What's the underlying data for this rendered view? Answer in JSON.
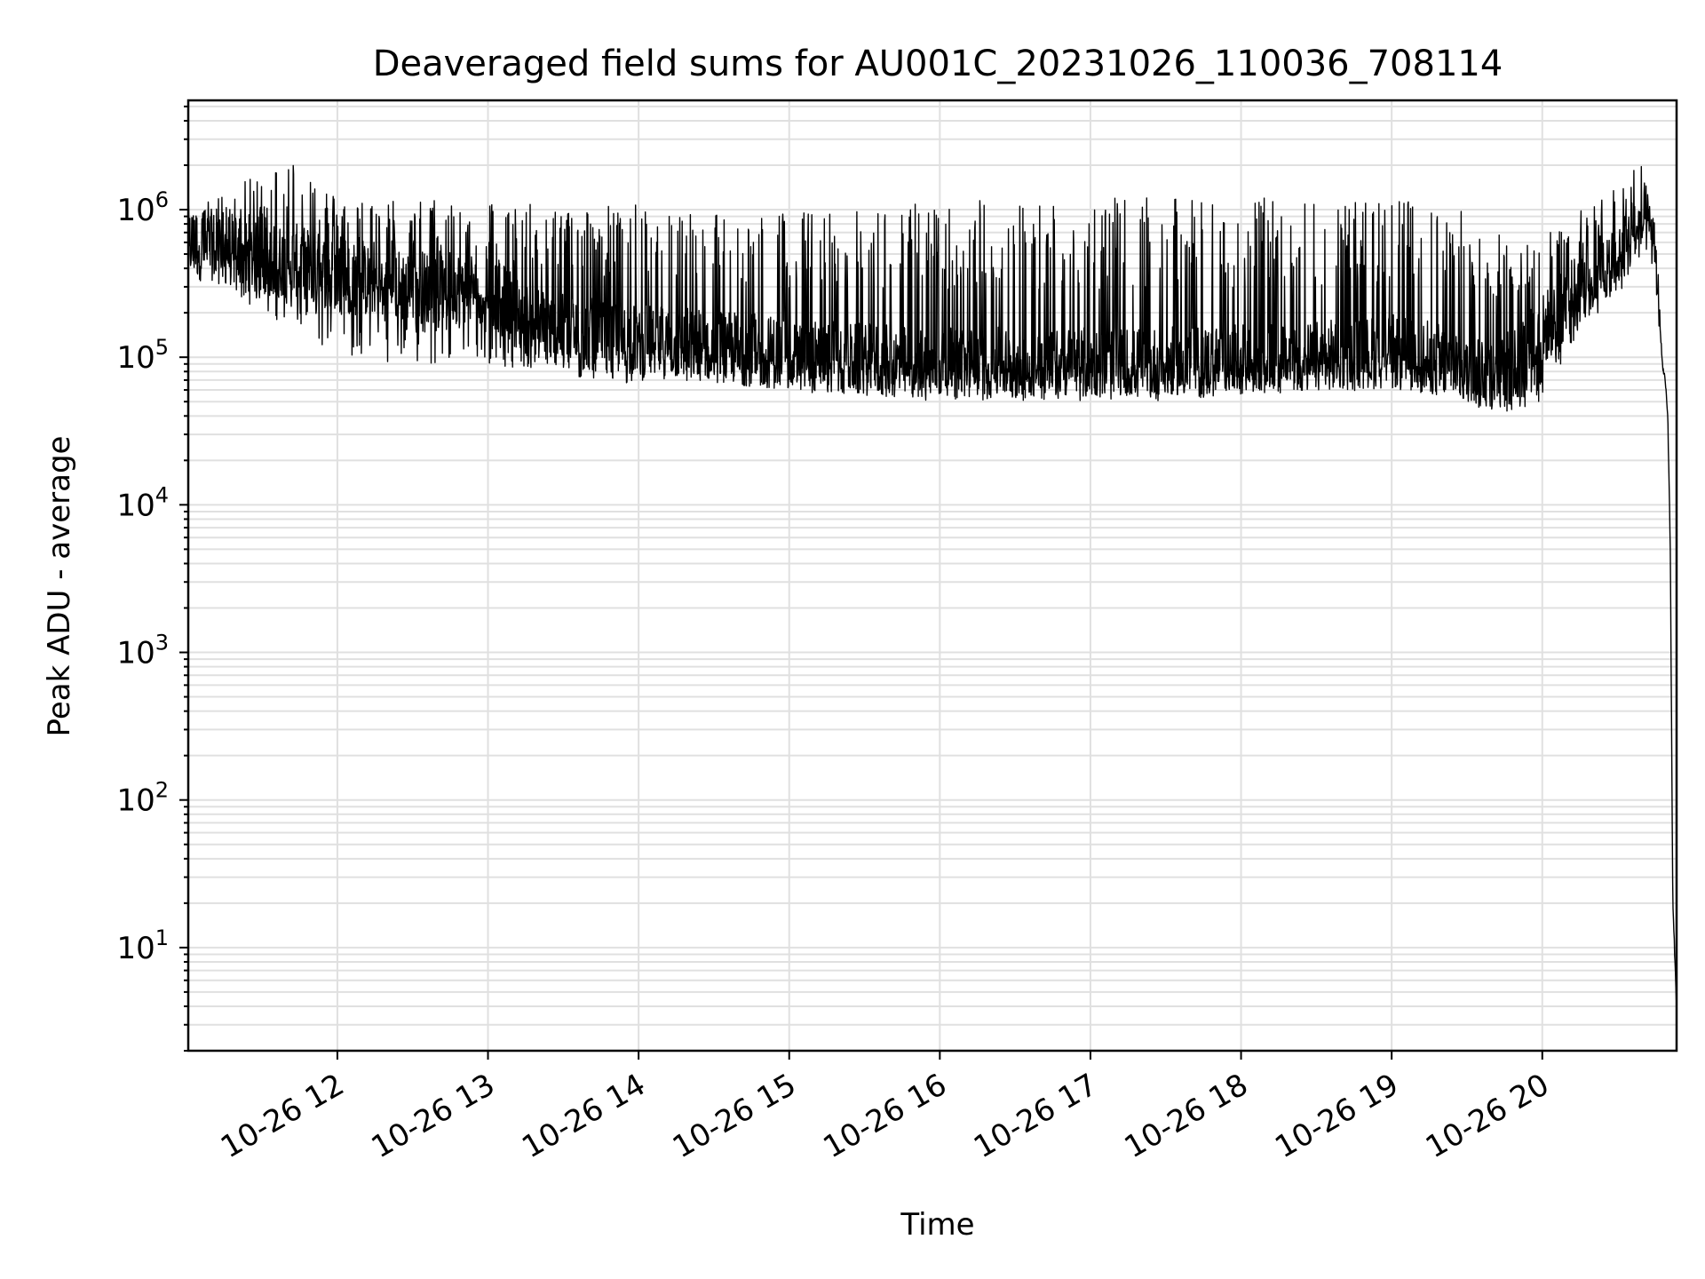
{
  "chart_data": {
    "type": "line",
    "title": "Deaveraged field sums for AU001C_20231026_110036_708114",
    "xlabel": "Time",
    "ylabel": "Peak ADU - average",
    "yscale": "log",
    "ylim": [
      2,
      5500000
    ],
    "xlim": [
      "2023-10-26T11:00:36",
      "2023-10-26T20:53:30"
    ],
    "grid": "on (major and minor)",
    "legend": "none",
    "line_color": "#000000",
    "x_ticks": [
      {
        "t": "2023-10-26T12:00:00",
        "label": "10-26 12"
      },
      {
        "t": "2023-10-26T13:00:00",
        "label": "10-26 13"
      },
      {
        "t": "2023-10-26T14:00:00",
        "label": "10-26 14"
      },
      {
        "t": "2023-10-26T15:00:00",
        "label": "10-26 15"
      },
      {
        "t": "2023-10-26T16:00:00",
        "label": "10-26 16"
      },
      {
        "t": "2023-10-26T17:00:00",
        "label": "10-26 17"
      },
      {
        "t": "2023-10-26T18:00:00",
        "label": "10-26 18"
      },
      {
        "t": "2023-10-26T19:00:00",
        "label": "10-26 19"
      },
      {
        "t": "2023-10-26T20:00:00",
        "label": "10-26 20"
      }
    ],
    "y_ticks": [
      {
        "value": 10,
        "base": "10",
        "exp": "1"
      },
      {
        "value": 100,
        "base": "10",
        "exp": "2"
      },
      {
        "value": 1000,
        "base": "10",
        "exp": "3"
      },
      {
        "value": 10000,
        "base": "10",
        "exp": "4"
      },
      {
        "value": 100000,
        "base": "10",
        "exp": "5"
      },
      {
        "value": 1000000,
        "base": "10",
        "exp": "6"
      }
    ],
    "series": [
      {
        "envelope_x": [
          "2023-10-26T11:00:36",
          "2023-10-26T11:15:00",
          "2023-10-26T11:30:00",
          "2023-10-26T11:45:00",
          "2023-10-26T12:00:00",
          "2023-10-26T12:30:00",
          "2023-10-26T13:00:00",
          "2023-10-26T13:15:00",
          "2023-10-26T13:30:00",
          "2023-10-26T14:00:00",
          "2023-10-26T14:30:00",
          "2023-10-26T15:00:00",
          "2023-10-26T15:30:00",
          "2023-10-26T16:00:00",
          "2023-10-26T16:30:00",
          "2023-10-26T17:00:00",
          "2023-10-26T17:30:00",
          "2023-10-26T18:00:00",
          "2023-10-26T18:30:00",
          "2023-10-26T19:00:00",
          "2023-10-26T19:30:00",
          "2023-10-26T19:45:00",
          "2023-10-26T20:00:00",
          "2023-10-26T20:15:00",
          "2023-10-26T20:30:00",
          "2023-10-26T20:38:00",
          "2023-10-26T20:42:00",
          "2023-10-26T20:45:00",
          "2023-10-26T20:47:00",
          "2023-10-26T20:48:00",
          "2023-10-26T20:49:00",
          "2023-10-26T20:50:00",
          "2023-10-26T20:51:00",
          "2023-10-26T20:52:00",
          "2023-10-26T20:53:30"
        ],
        "baseline": [
          600000,
          550000,
          450000,
          450000,
          350000,
          300000,
          300000,
          180000,
          150000,
          130000,
          120000,
          105000,
          95000,
          90000,
          90000,
          90000,
          90000,
          95000,
          100000,
          110000,
          90000,
          80000,
          150000,
          300000,
          500000,
          800000,
          900000,
          500000,
          150000,
          85000,
          70000,
          40000,
          5000,
          20,
          4
        ],
        "typical_low": [
          400000,
          300000,
          200000,
          150000,
          100000,
          90000,
          85000,
          85000,
          70000,
          65000,
          65000,
          60000,
          55000,
          55000,
          55000,
          55000,
          55000,
          60000,
          60000,
          60000,
          50000,
          35000,
          50000,
          150000,
          250000,
          500000,
          700000,
          500000,
          150000,
          85000,
          70000,
          40000,
          5000,
          20,
          4
        ],
        "spike_max": [
          1000000,
          1300000,
          1800000,
          2500000,
          1200000,
          1200000,
          1200000,
          1100000,
          1100000,
          1100000,
          1000000,
          1000000,
          1000000,
          1200000,
          1200000,
          1200000,
          1200000,
          1200000,
          1200000,
          1200000,
          1000000,
          700000,
          700000,
          1000000,
          1500000,
          2600000,
          1300000,
          600000,
          150000,
          85000,
          70000,
          40000,
          5000,
          20,
          4
        ]
      }
    ]
  }
}
